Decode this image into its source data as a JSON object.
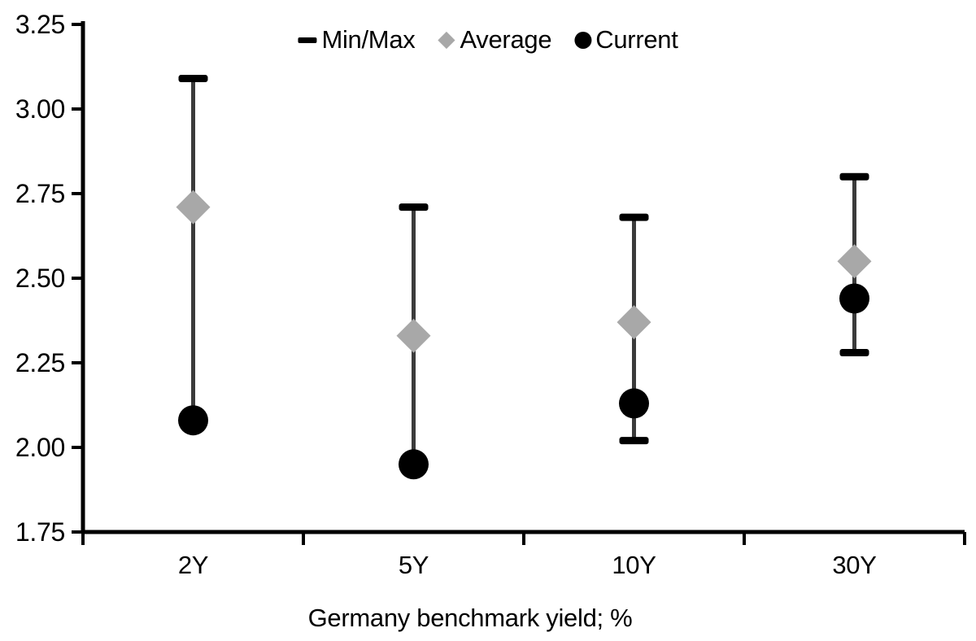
{
  "chart_data": {
    "type": "dot_range",
    "title": "",
    "xlabel": "Germany benchmark yield; %",
    "ylabel": "",
    "categories": [
      "2Y",
      "5Y",
      "10Y",
      "30Y"
    ],
    "ylim": [
      1.75,
      3.25
    ],
    "y_tick_step": 0.25,
    "y_tick_labels": [
      "3.25",
      "3.00",
      "2.75",
      "2.50",
      "2.25",
      "2.00",
      "1.75"
    ],
    "grid": false,
    "legend": [
      "Min/Max",
      "Average",
      "Current"
    ],
    "legend_position": "top-center",
    "series": [
      {
        "name": "Min/Max",
        "type": "range",
        "marker": "cap",
        "max": [
          3.09,
          2.71,
          2.68,
          2.8
        ],
        "min": [
          2.08,
          1.95,
          2.02,
          2.28
        ]
      },
      {
        "name": "Average",
        "type": "point",
        "marker": "diamond",
        "color": "#A8A8A8",
        "values": [
          2.71,
          2.33,
          2.37,
          2.55
        ]
      },
      {
        "name": "Current",
        "type": "point",
        "marker": "circle",
        "color": "#000000",
        "values": [
          2.08,
          1.95,
          2.13,
          2.44
        ]
      }
    ]
  },
  "colors": {
    "background": "#FFFFFF",
    "axis": "#000000",
    "range_line": "#3B3B3B",
    "cap": "#000000",
    "average": "#A8A8A8",
    "current": "#000000",
    "text": "#000000"
  }
}
